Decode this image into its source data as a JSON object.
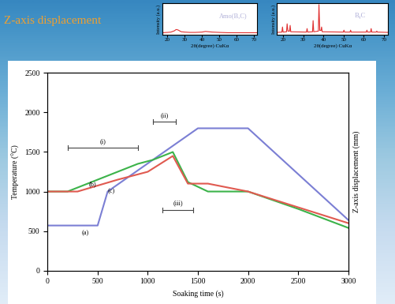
{
  "slide_title": "Z-axis displacement",
  "chart_data": [
    {
      "type": "line",
      "x_label": "Soaking time (s)",
      "y_label": "Temperature (°C)",
      "y2_label": "Z-axis displacement (mm)",
      "xlim": [
        0,
        3000
      ],
      "xticks": [
        0,
        500,
        1000,
        1500,
        2000,
        2500,
        3000
      ],
      "ylim": [
        0,
        2500
      ],
      "yticks": [
        0,
        500,
        1000,
        1500,
        2000,
        2500
      ],
      "series": [
        {
          "name": "(a)",
          "color": "#7b7fd4",
          "label_at": [
            380,
            470
          ],
          "x": [
            0,
            500,
            600,
            1500,
            2000,
            3000
          ],
          "values": [
            570,
            570,
            1000,
            1800,
            1800,
            640
          ]
        },
        {
          "name": "(b)",
          "color": "#3cb34a",
          "label_at": [
            450,
            1090
          ],
          "x": [
            0,
            200,
            500,
            900,
            1050,
            1250,
            1400,
            1600,
            2000,
            2500,
            3000
          ],
          "values": [
            1000,
            1000,
            1150,
            1350,
            1400,
            1500,
            1120,
            1000,
            1000,
            780,
            540
          ]
        },
        {
          "name": "(c)",
          "color": "#e05a50",
          "label_at": [
            640,
            1000
          ],
          "x": [
            0,
            300,
            700,
            1000,
            1250,
            1400,
            1600,
            2000,
            2500,
            3000
          ],
          "values": [
            1000,
            1000,
            1150,
            1250,
            1450,
            1100,
            1100,
            1000,
            800,
            600
          ]
        }
      ],
      "annotations": [
        {
          "text": "(i)",
          "x": [
            200,
            900
          ],
          "y": 1550
        },
        {
          "text": "(ii)",
          "x": [
            1050,
            1280
          ],
          "y": 1880
        },
        {
          "text": "(iii)",
          "x": [
            1150,
            1450
          ],
          "y": 770
        }
      ]
    },
    {
      "type": "line",
      "title": "Amo(B,C)",
      "color": "#e03030",
      "x_label": "2θ(degree) CuKα",
      "y_label": "Intensity (a.u.)",
      "tick_labels": "x",
      "xlim": [
        17,
        72
      ],
      "xticks": [
        20,
        30,
        40,
        50,
        60,
        70
      ],
      "ylim": [
        0,
        100
      ],
      "x": [
        17,
        20,
        22,
        24,
        25,
        26,
        27,
        28,
        30,
        33,
        36,
        40,
        42,
        44,
        46,
        50,
        55,
        60,
        65,
        70,
        72
      ],
      "values": [
        7,
        8,
        9,
        13,
        17,
        16,
        13,
        10,
        9,
        8,
        8,
        9,
        11,
        10,
        9,
        8,
        7,
        7,
        7,
        7,
        7
      ]
    },
    {
      "type": "line",
      "title": "B₄C",
      "color": "#e03030",
      "x_label": "2θ(degree) CuKα",
      "y_label": "Intensity (a.u.)",
      "tick_labels": "x",
      "xlim": [
        17,
        72
      ],
      "xticks": [
        20,
        30,
        40,
        50,
        60,
        70
      ],
      "ylim": [
        0,
        100
      ],
      "x": [
        17,
        19.4,
        19.7,
        20,
        21.7,
        22,
        22.4,
        23.2,
        23.5,
        23.8,
        31.6,
        31.9,
        32.2,
        34.6,
        34.9,
        35.2,
        37.5,
        37.8,
        38.2,
        38.8,
        39.1,
        39.4,
        49.9,
        50.2,
        50.5,
        53.2,
        53.5,
        53.8,
        61.3,
        61.6,
        61.9,
        63.4,
        63.7,
        64.0,
        66.2,
        66.5,
        66.8,
        72
      ],
      "values": [
        8,
        9,
        25,
        9,
        10,
        35,
        12,
        12,
        30,
        10,
        9,
        20,
        9,
        10,
        45,
        10,
        12,
        95,
        14,
        14,
        25,
        10,
        9,
        15,
        9,
        9,
        15,
        9,
        9,
        15,
        9,
        9,
        20,
        9,
        9,
        12,
        9,
        8
      ]
    }
  ]
}
